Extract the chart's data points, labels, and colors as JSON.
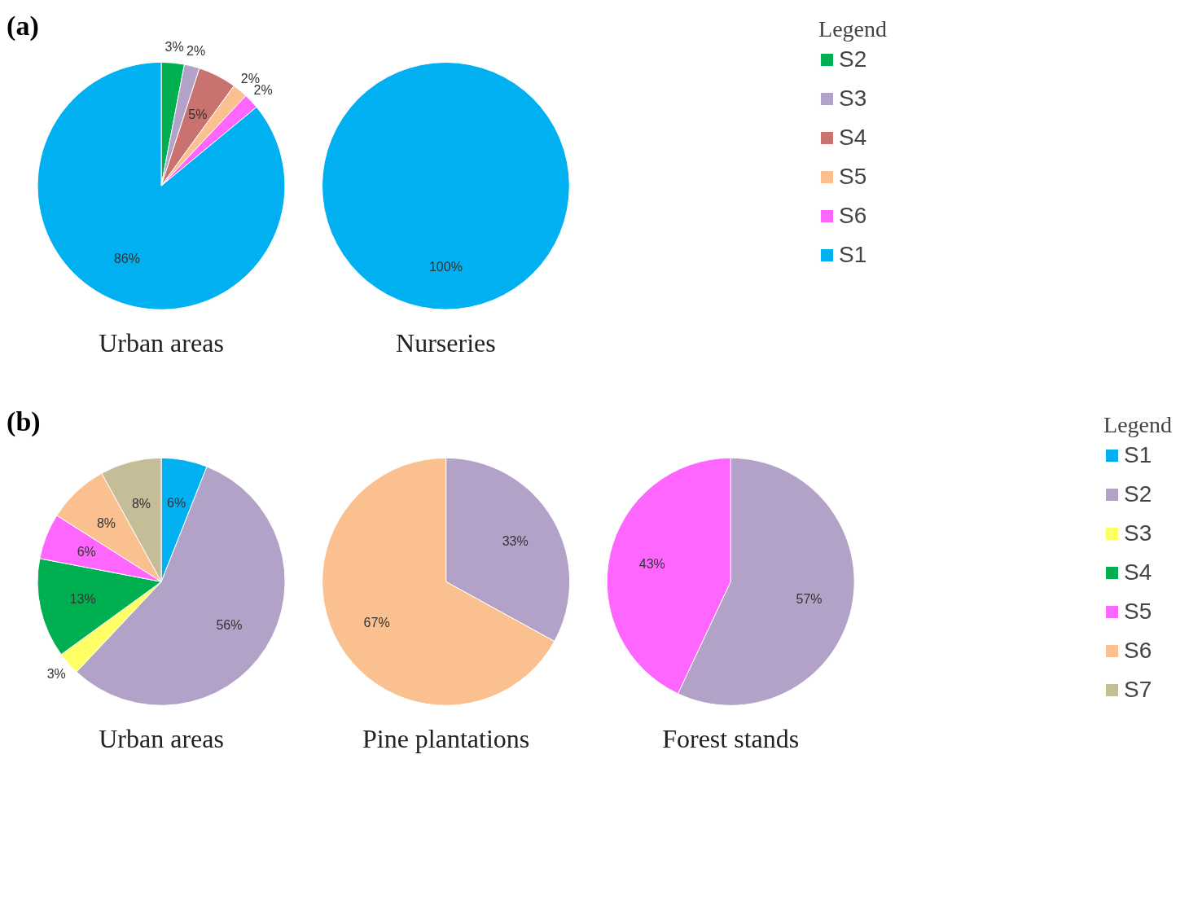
{
  "chart_data": [
    {
      "type": "pie",
      "title": "Urban areas",
      "annotations": [
        "(a)"
      ],
      "legend": "right",
      "legend_title": "Legend",
      "categories": [
        "S2",
        "S3",
        "S4",
        "S5",
        "S6",
        "S1"
      ],
      "values": [
        3,
        2,
        5,
        2,
        2,
        86
      ],
      "value_labels": [
        "3%",
        "2%",
        "5%",
        "2%",
        "2%",
        "86%"
      ],
      "colors": [
        "#00b050",
        "#b3a2c7",
        "#c8736f",
        "#fac090",
        "#ff66ff",
        "#00b0f0"
      ]
    },
    {
      "type": "pie",
      "title": "Nurseries",
      "categories": [
        null
      ],
      "values": [
        100
      ],
      "value_labels": [
        "100%"
      ],
      "colors": [
        "#00b0f0"
      ]
    },
    {
      "type": "pie",
      "title": "Urban areas",
      "annotations": [
        "(b)"
      ],
      "legend": "right",
      "legend_title": "Legend",
      "categories": [
        "S1",
        "S2",
        "S3",
        "S4",
        "S5",
        "S6",
        "S7"
      ],
      "values": [
        6,
        56,
        3,
        13,
        6,
        8,
        8
      ],
      "value_labels": [
        "6%",
        "56%",
        "3%",
        "13%",
        "6%",
        "8%",
        "8%"
      ],
      "colors": [
        "#00b0f0",
        "#b3a2c7",
        "#ffff66",
        "#00b050",
        "#ff66ff",
        "#fac090",
        "#c4bd97"
      ]
    },
    {
      "type": "pie",
      "title": "Pine plantations",
      "categories": [
        null,
        null
      ],
      "values": [
        33,
        67
      ],
      "value_labels": [
        "33%",
        "67%"
      ],
      "colors": [
        "#b3a2c7",
        "#fac090"
      ]
    },
    {
      "type": "pie",
      "title": "Forest stands",
      "categories": [
        null,
        null
      ],
      "values": [
        57,
        43
      ],
      "value_labels": [
        "57%",
        "43%"
      ],
      "colors": [
        "#b3a2c7",
        "#ff66ff"
      ]
    }
  ]
}
